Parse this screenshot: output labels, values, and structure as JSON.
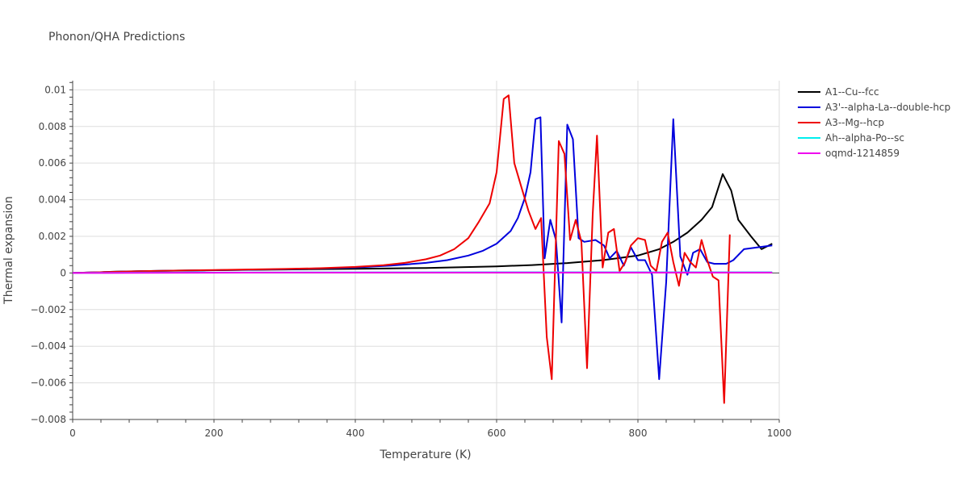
{
  "chart_data": {
    "type": "line",
    "title": "Phonon/QHA Predictions",
    "xlabel": "Temperature (K)",
    "ylabel": "Thermal expansion",
    "xlim": [
      0,
      1000
    ],
    "ylim": [
      -0.008,
      0.0105
    ],
    "x_ticks": [
      0,
      200,
      400,
      600,
      800,
      1000
    ],
    "x_tick_labels": [
      "0",
      "200",
      "400",
      "600",
      "800",
      "1000"
    ],
    "y_ticks": [
      -0.008,
      -0.006,
      -0.004,
      -0.002,
      0,
      0.002,
      0.004,
      0.006,
      0.008,
      0.01
    ],
    "y_tick_labels": [
      "−0.008",
      "−0.006",
      "−0.004",
      "−0.002",
      "0",
      "0.002",
      "0.004",
      "0.006",
      "0.008",
      "0.01"
    ],
    "grid": true,
    "legend_position": "top-right",
    "series": [
      {
        "name": "A1--Cu--fcc",
        "color": "#000000",
        "points": [
          [
            0,
            0
          ],
          [
            20,
            2e-05
          ],
          [
            40,
            4e-05
          ],
          [
            60,
            7e-05
          ],
          [
            100,
            0.0001
          ],
          [
            150,
            0.00013
          ],
          [
            200,
            0.00015
          ],
          [
            250,
            0.00017
          ],
          [
            300,
            0.00019
          ],
          [
            350,
            0.00021
          ],
          [
            400,
            0.00023
          ],
          [
            450,
            0.00025
          ],
          [
            500,
            0.00027
          ],
          [
            550,
            0.00031
          ],
          [
            600,
            0.00036
          ],
          [
            650,
            0.00043
          ],
          [
            700,
            0.00054
          ],
          [
            750,
            0.0007
          ],
          [
            800,
            0.00095
          ],
          [
            830,
            0.0013
          ],
          [
            850,
            0.0017
          ],
          [
            870,
            0.0022
          ],
          [
            890,
            0.0029
          ],
          [
            905,
            0.0036
          ],
          [
            920,
            0.0054
          ],
          [
            932,
            0.0045
          ],
          [
            942,
            0.0029
          ],
          [
            960,
            0.002
          ],
          [
            975,
            0.0013
          ],
          [
            990,
            0.0016
          ]
        ]
      },
      {
        "name": "A3'--alpha-La--double-hcp",
        "color": "#0000dd",
        "points": [
          [
            0,
            0
          ],
          [
            50,
            5e-05
          ],
          [
            100,
            0.0001
          ],
          [
            200,
            0.00015
          ],
          [
            300,
            0.0002
          ],
          [
            400,
            0.0003
          ],
          [
            450,
            0.0004
          ],
          [
            500,
            0.00055
          ],
          [
            530,
            0.0007
          ],
          [
            560,
            0.00095
          ],
          [
            580,
            0.0012
          ],
          [
            600,
            0.0016
          ],
          [
            620,
            0.0023
          ],
          [
            630,
            0.003
          ],
          [
            640,
            0.0041
          ],
          [
            648,
            0.0055
          ],
          [
            655,
            0.0084
          ],
          [
            662,
            0.0085
          ],
          [
            668,
            0.0008
          ],
          [
            676,
            0.0029
          ],
          [
            684,
            0.0018
          ],
          [
            692,
            -0.0027
          ],
          [
            700,
            0.0081
          ],
          [
            708,
            0.0073
          ],
          [
            716,
            0.0019
          ],
          [
            724,
            0.0017
          ],
          [
            740,
            0.0018
          ],
          [
            752,
            0.0015
          ],
          [
            760,
            0.0008
          ],
          [
            770,
            0.0012
          ],
          [
            780,
            0.0004
          ],
          [
            790,
            0.0014
          ],
          [
            800,
            0.0007
          ],
          [
            810,
            0.0007
          ],
          [
            820,
            -0.0001
          ],
          [
            830,
            -0.0058
          ],
          [
            840,
            -0.0005
          ],
          [
            850,
            0.0084
          ],
          [
            860,
            0.0009
          ],
          [
            870,
            -0.0001
          ],
          [
            878,
            0.0011
          ],
          [
            888,
            0.0013
          ],
          [
            898,
            0.0006
          ],
          [
            908,
            0.0005
          ],
          [
            925,
            0.0005
          ],
          [
            935,
            0.0007
          ],
          [
            950,
            0.0013
          ],
          [
            990,
            0.0015
          ]
        ]
      },
      {
        "name": "A3--Mg--hcp",
        "color": "#ee0000",
        "points": [
          [
            0,
            0
          ],
          [
            100,
            0.0001
          ],
          [
            200,
            0.00016
          ],
          [
            300,
            0.00022
          ],
          [
            350,
            0.00026
          ],
          [
            400,
            0.00033
          ],
          [
            440,
            0.00042
          ],
          [
            470,
            0.00055
          ],
          [
            500,
            0.00075
          ],
          [
            520,
            0.00095
          ],
          [
            540,
            0.0013
          ],
          [
            560,
            0.0019
          ],
          [
            575,
            0.0028
          ],
          [
            590,
            0.0038
          ],
          [
            600,
            0.0055
          ],
          [
            610,
            0.0095
          ],
          [
            617,
            0.0097
          ],
          [
            625,
            0.006
          ],
          [
            635,
            0.0047
          ],
          [
            645,
            0.0034
          ],
          [
            655,
            0.0024
          ],
          [
            663,
            0.003
          ],
          [
            671,
            -0.0035
          ],
          [
            678,
            -0.0058
          ],
          [
            688,
            0.0072
          ],
          [
            696,
            0.0065
          ],
          [
            704,
            0.0018
          ],
          [
            712,
            0.0029
          ],
          [
            720,
            0.0017
          ],
          [
            728,
            -0.0052
          ],
          [
            736,
            0.0032
          ],
          [
            742,
            0.0075
          ],
          [
            750,
            0.0003
          ],
          [
            758,
            0.0022
          ],
          [
            766,
            0.0024
          ],
          [
            774,
            0.0001
          ],
          [
            782,
            0.0006
          ],
          [
            790,
            0.0015
          ],
          [
            800,
            0.0019
          ],
          [
            810,
            0.0018
          ],
          [
            818,
            0.0004
          ],
          [
            826,
            0.0001
          ],
          [
            834,
            0.0017
          ],
          [
            842,
            0.0022
          ],
          [
            850,
            0.0006
          ],
          [
            858,
            -0.0007
          ],
          [
            866,
            0.0011
          ],
          [
            874,
            0.0006
          ],
          [
            882,
            0.0003
          ],
          [
            890,
            0.0018
          ],
          [
            898,
            0.0007
          ],
          [
            906,
            -0.0002
          ],
          [
            914,
            -0.0004
          ],
          [
            922,
            -0.0071
          ],
          [
            930,
            0.0021
          ]
        ]
      },
      {
        "name": "Ah--alpha-Po--sc",
        "color": "#00eeee",
        "points": [
          [
            0,
            0
          ],
          [
            100,
            2e-05
          ],
          [
            300,
            3e-05
          ],
          [
            600,
            4e-05
          ],
          [
            990,
            4e-05
          ]
        ]
      },
      {
        "name": "oqmd-1214859",
        "color": "#ee00ee",
        "points": [
          [
            0,
            0
          ],
          [
            100,
            1e-05
          ],
          [
            300,
            2e-05
          ],
          [
            600,
            2e-05
          ],
          [
            990,
            2e-05
          ]
        ]
      }
    ]
  }
}
